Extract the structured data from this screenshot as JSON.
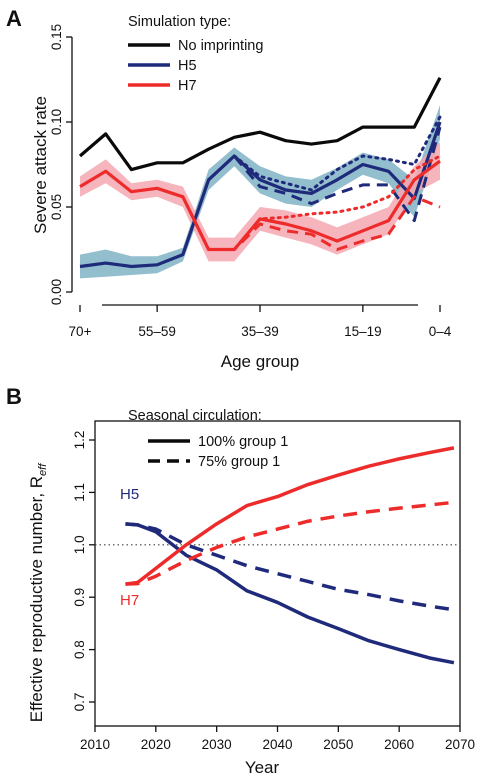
{
  "colors": {
    "black": "#0a0a0a",
    "blue": "#1f2a7a",
    "red": "#ee2b2b",
    "blue_band": "#7fb3c6",
    "red_band": "#f4a7b0"
  },
  "chart_data": [
    {
      "panel": "A",
      "type": "line",
      "xlabel": "Age group",
      "ylabel": "Severe attack rate",
      "ylim": [
        0,
        0.15
      ],
      "yticks": [
        "0.00",
        "0.05",
        "0.10",
        "0.15"
      ],
      "x_tick_labels": [
        "70+",
        "55–59",
        "35–39",
        "15–19",
        "0–4"
      ],
      "x_tick_positions": [
        0,
        3,
        7,
        11,
        14
      ],
      "xlim": [
        0,
        14
      ],
      "legend_title": "Simulation type:",
      "legend": [
        "No imprinting",
        "H5",
        "H7"
      ],
      "legend_placement": "top",
      "series": [
        {
          "name": "No imprinting",
          "color_key": "black",
          "style": "solid",
          "x": [
            0,
            1,
            2,
            3,
            4,
            5,
            6,
            7,
            8,
            9,
            10,
            11,
            12,
            13,
            14
          ],
          "values": [
            0.08,
            0.093,
            0.072,
            0.076,
            0.076,
            0.084,
            0.091,
            0.094,
            0.089,
            0.087,
            0.089,
            0.097,
            0.097,
            0.097,
            0.126
          ]
        },
        {
          "name": "H5",
          "color_key": "blue",
          "style": "solid",
          "x": [
            0,
            1,
            2,
            3,
            4,
            5,
            6,
            7,
            8,
            9,
            10,
            11,
            12,
            13,
            14
          ],
          "values": [
            0.015,
            0.017,
            0.015,
            0.016,
            0.022,
            0.066,
            0.08,
            0.066,
            0.06,
            0.058,
            0.066,
            0.075,
            0.071,
            0.055,
            0.1
          ],
          "band_lower": [
            0.008,
            0.009,
            0.01,
            0.011,
            0.018,
            0.06,
            0.074,
            0.058,
            0.052,
            0.05,
            0.06,
            0.069,
            0.064,
            0.044,
            0.09
          ],
          "band_upper": [
            0.022,
            0.025,
            0.021,
            0.021,
            0.026,
            0.072,
            0.085,
            0.074,
            0.068,
            0.066,
            0.073,
            0.082,
            0.078,
            0.066,
            0.11
          ]
        },
        {
          "name": "H5 dashed",
          "color_key": "blue",
          "style": "dashed",
          "x": [
            5,
            6,
            7,
            8,
            9,
            10,
            11,
            12,
            13,
            14
          ],
          "values": [
            0.066,
            0.08,
            0.062,
            0.058,
            0.052,
            0.058,
            0.063,
            0.063,
            0.042,
            0.097
          ]
        },
        {
          "name": "H5 dotted",
          "color_key": "blue",
          "style": "dotted",
          "x": [
            5,
            6,
            7,
            8,
            9,
            10,
            11,
            12,
            13,
            14
          ],
          "values": [
            0.066,
            0.08,
            0.068,
            0.064,
            0.06,
            0.072,
            0.08,
            0.078,
            0.075,
            0.103
          ]
        },
        {
          "name": "H7",
          "color_key": "red",
          "style": "solid",
          "x": [
            0,
            1,
            2,
            3,
            4,
            5,
            6,
            7,
            8,
            9,
            10,
            11,
            12,
            13,
            14
          ],
          "values": [
            0.062,
            0.071,
            0.059,
            0.061,
            0.056,
            0.025,
            0.025,
            0.043,
            0.04,
            0.036,
            0.03,
            0.036,
            0.042,
            0.066,
            0.077
          ],
          "band_lower": [
            0.056,
            0.064,
            0.054,
            0.056,
            0.05,
            0.018,
            0.018,
            0.036,
            0.032,
            0.028,
            0.022,
            0.028,
            0.034,
            0.058,
            0.066
          ],
          "band_upper": [
            0.068,
            0.078,
            0.064,
            0.066,
            0.062,
            0.032,
            0.032,
            0.05,
            0.048,
            0.044,
            0.038,
            0.044,
            0.05,
            0.074,
            0.088
          ]
        },
        {
          "name": "H7 dashed",
          "color_key": "red",
          "style": "dashed",
          "x": [
            5,
            6,
            7,
            8,
            9,
            10,
            11,
            12,
            13,
            14
          ],
          "values": [
            0.025,
            0.025,
            0.04,
            0.036,
            0.034,
            0.025,
            0.03,
            0.034,
            0.056,
            0.05
          ]
        },
        {
          "name": "H7 dotted",
          "color_key": "red",
          "style": "dotted",
          "x": [
            5,
            6,
            7,
            8,
            9,
            10,
            11,
            12,
            13,
            14
          ],
          "values": [
            0.025,
            0.025,
            0.043,
            0.044,
            0.046,
            0.047,
            0.05,
            0.056,
            0.072,
            0.08
          ]
        }
      ]
    },
    {
      "panel": "B",
      "type": "line",
      "xlabel": "Year",
      "ylabel": "Effective reproductive number, R",
      "ylabel_subscript": "eff",
      "xlim": [
        2010,
        2070
      ],
      "ylim": [
        0.7,
        1.2
      ],
      "xticks": [
        2010,
        2020,
        2030,
        2040,
        2050,
        2060,
        2070
      ],
      "yticks": [
        "0.7",
        "0.8",
        "0.9",
        "1.0",
        "1.1",
        "1.2"
      ],
      "reference_line": 1.0,
      "legend_title": "Seasonal circulation:",
      "legend": [
        "100%   group 1",
        "75% group 1"
      ],
      "legend_placement": "top",
      "series_labels": [
        "H5",
        "H7"
      ],
      "series": [
        {
          "name": "H5",
          "color_key": "blue",
          "style": "solid",
          "x": [
            2015,
            2017,
            2020,
            2025,
            2030,
            2035,
            2040,
            2045,
            2050,
            2055,
            2060,
            2065,
            2069
          ],
          "values": [
            1.04,
            1.038,
            1.025,
            0.98,
            0.952,
            0.912,
            0.89,
            0.862,
            0.84,
            0.817,
            0.8,
            0.784,
            0.775
          ]
        },
        {
          "name": "H5 dashed",
          "color_key": "blue",
          "style": "dashed",
          "x": [
            2015,
            2017,
            2020,
            2025,
            2030,
            2035,
            2040,
            2045,
            2050,
            2055,
            2060,
            2065,
            2069
          ],
          "values": [
            1.04,
            1.038,
            1.03,
            1.0,
            0.98,
            0.96,
            0.945,
            0.93,
            0.915,
            0.905,
            0.893,
            0.883,
            0.876
          ]
        },
        {
          "name": "H7",
          "color_key": "red",
          "style": "solid",
          "x": [
            2015,
            2017,
            2020,
            2025,
            2030,
            2035,
            2040,
            2045,
            2050,
            2055,
            2060,
            2065,
            2069
          ],
          "values": [
            0.925,
            0.928,
            0.955,
            1.0,
            1.04,
            1.075,
            1.092,
            1.115,
            1.133,
            1.15,
            1.164,
            1.176,
            1.185
          ]
        },
        {
          "name": "H7 dashed",
          "color_key": "red",
          "style": "dashed",
          "x": [
            2015,
            2017,
            2020,
            2025,
            2030,
            2035,
            2040,
            2045,
            2050,
            2055,
            2060,
            2065,
            2069
          ],
          "values": [
            0.925,
            0.926,
            0.94,
            0.97,
            0.995,
            1.015,
            1.03,
            1.045,
            1.055,
            1.063,
            1.07,
            1.076,
            1.081
          ]
        }
      ]
    }
  ]
}
